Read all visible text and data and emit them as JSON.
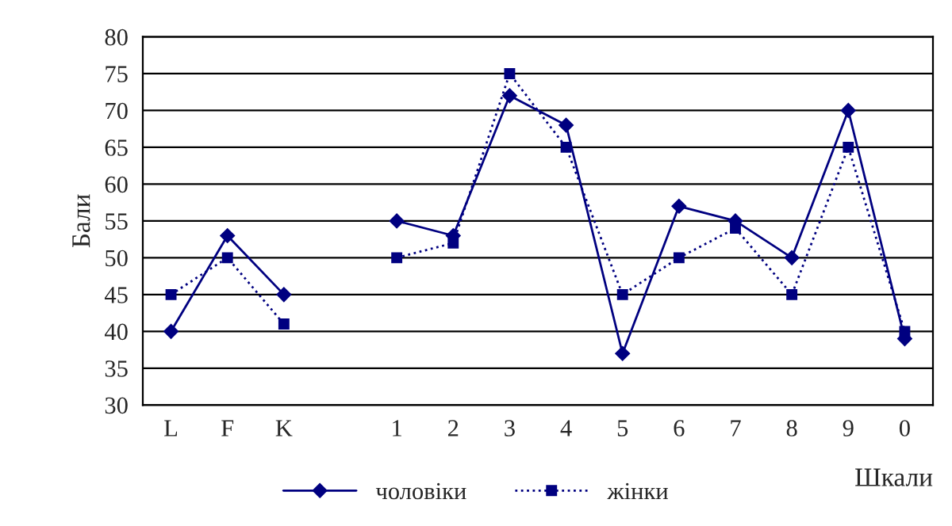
{
  "chart_data": {
    "type": "line",
    "xlabel": "Шкали",
    "ylabel": "Бали",
    "categories": [
      "L",
      "F",
      "K",
      null,
      "1",
      "2",
      "3",
      "4",
      "5",
      "6",
      "7",
      "8",
      "9",
      "0"
    ],
    "series": [
      {
        "name": "чоловіки",
        "color": "#000080",
        "marker": "diamond",
        "line_style": "solid",
        "values": [
          40,
          53,
          45,
          null,
          55,
          53,
          72,
          68,
          37,
          57,
          55,
          50,
          70,
          39
        ]
      },
      {
        "name": "жінки",
        "color": "#000080",
        "marker": "square",
        "line_style": "dotted",
        "values": [
          45,
          50,
          41,
          null,
          50,
          52,
          75,
          65,
          45,
          50,
          54,
          45,
          65,
          40
        ]
      }
    ],
    "ylim": [
      30,
      80
    ],
    "yticks": [
      30,
      35,
      40,
      45,
      50,
      55,
      60,
      65,
      70,
      75,
      80
    ],
    "grid": "y",
    "legend": "bottom"
  }
}
